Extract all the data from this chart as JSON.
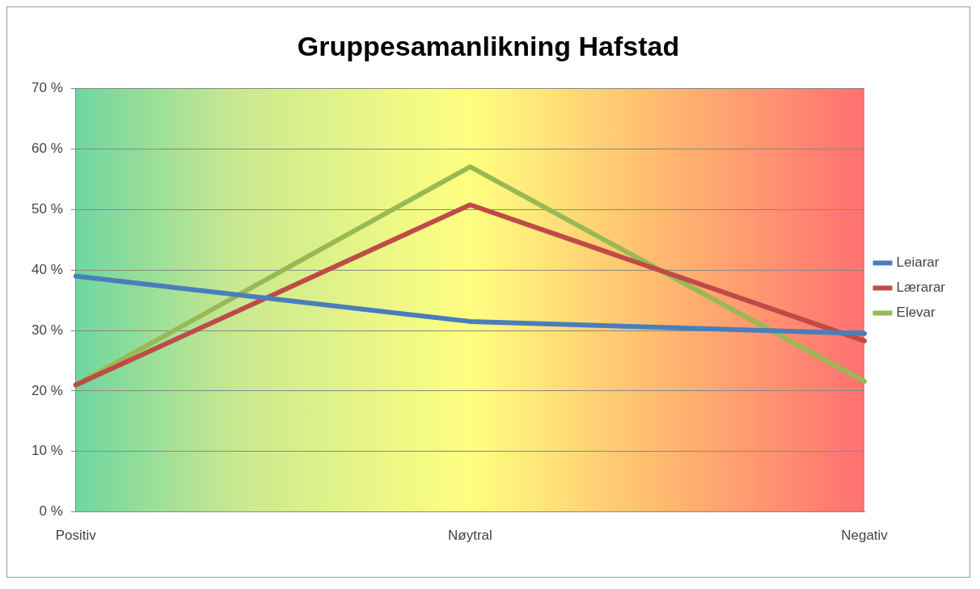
{
  "chart_data": {
    "type": "line",
    "title": "Gruppesamanlikning Hafstad",
    "categories": [
      "Positiv",
      "Nøytral",
      "Negativ"
    ],
    "series": [
      {
        "name": "Leiarar",
        "color": "#4a7ebb",
        "values": [
          39,
          31.5,
          29.5
        ]
      },
      {
        "name": "Lærarar",
        "color": "#be4b48",
        "values": [
          21,
          50.8,
          28.3
        ]
      },
      {
        "name": "Elevar",
        "color": "#98b954",
        "values": [
          21,
          57.1,
          21.6
        ]
      }
    ],
    "ylim": [
      0,
      70
    ],
    "yticks": [
      {
        "value": 0,
        "label": "0 %"
      },
      {
        "value": 10,
        "label": "10 %"
      },
      {
        "value": 20,
        "label": "20 %"
      },
      {
        "value": 30,
        "label": "30 %"
      },
      {
        "value": 40,
        "label": "40 %"
      },
      {
        "value": 50,
        "label": "50 %"
      },
      {
        "value": 60,
        "label": "60 %"
      },
      {
        "value": 70,
        "label": "70 %"
      }
    ],
    "grid": "y",
    "legend": "right",
    "marker": "none",
    "line_style": "solid"
  }
}
